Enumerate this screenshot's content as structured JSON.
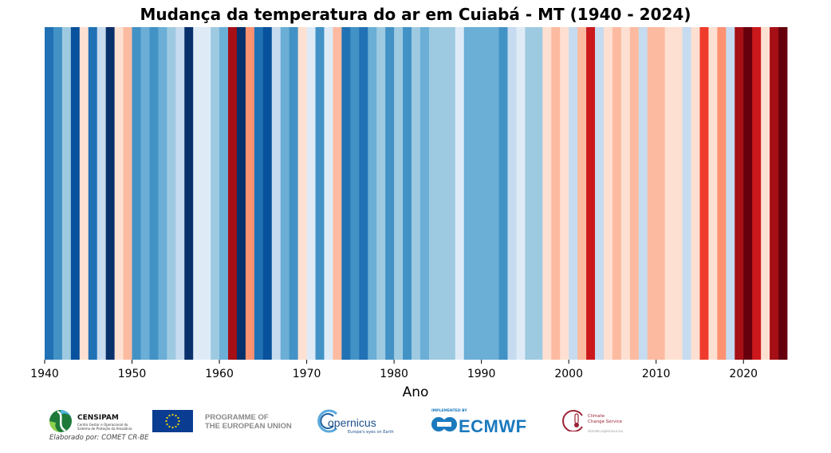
{
  "chart_data": {
    "type": "heatmap",
    "title": "Mudança da temperatura do ar em Cuiabá - MT (1940 - 2024)",
    "xlabel": "Ano",
    "ylabel": "",
    "xlim": [
      1940,
      2024
    ],
    "xticks": [
      1940,
      1950,
      1960,
      1970,
      1980,
      1990,
      2000,
      2010,
      2020
    ],
    "grid": false,
    "colormap": "RdBu_r",
    "years": [
      1940,
      1941,
      1942,
      1943,
      1944,
      1945,
      1946,
      1947,
      1948,
      1949,
      1950,
      1951,
      1952,
      1953,
      1954,
      1955,
      1956,
      1957,
      1958,
      1959,
      1960,
      1961,
      1962,
      1963,
      1964,
      1965,
      1966,
      1967,
      1968,
      1969,
      1970,
      1971,
      1972,
      1973,
      1974,
      1975,
      1976,
      1977,
      1978,
      1979,
      1980,
      1981,
      1982,
      1983,
      1984,
      1985,
      1986,
      1987,
      1988,
      1989,
      1990,
      1991,
      1992,
      1993,
      1994,
      1995,
      1996,
      1997,
      1998,
      1999,
      2000,
      2001,
      2002,
      2003,
      2004,
      2005,
      2006,
      2007,
      2008,
      2009,
      2010,
      2011,
      2012,
      2013,
      2014,
      2015,
      2016,
      2017,
      2018,
      2019,
      2020,
      2021,
      2022,
      2023,
      2024
    ],
    "colors": [
      "#2171b5",
      "#4292c6",
      "#9ecae1",
      "#08519c",
      "#fee0d2",
      "#2171b5",
      "#c6dbef",
      "#08306b",
      "#fee0d2",
      "#fcbba1",
      "#4292c6",
      "#6baed6",
      "#4292c6",
      "#6baed6",
      "#9ecae1",
      "#c6dbef",
      "#08306b",
      "#deebf7",
      "#deebf7",
      "#9ecae1",
      "#6baed6",
      "#a50f15",
      "#08306b",
      "#fc9272",
      "#2171b5",
      "#08519c",
      "#c6dbef",
      "#6baed6",
      "#4292c6",
      "#fee0d2",
      "#deebf7",
      "#4292c6",
      "#deebf7",
      "#fcbba1",
      "#2171b5",
      "#4292c6",
      "#2171b5",
      "#6baed6",
      "#9ecae1",
      "#4292c6",
      "#9ecae1",
      "#4292c6",
      "#9ecae1",
      "#6baed6",
      "#9ecae1",
      "#9ecae1",
      "#9ecae1",
      "#deebf7",
      "#6baed6",
      "#6baed6",
      "#6baed6",
      "#6baed6",
      "#4292c6",
      "#c6dbef",
      "#deebf7",
      "#9ecae1",
      "#9ecae1",
      "#fee0d2",
      "#fcbba1",
      "#fee0d2",
      "#c6dbef",
      "#fcbba1",
      "#cb181d",
      "#c6dbef",
      "#fee0d2",
      "#fcbba1",
      "#fee0d2",
      "#fcbba1",
      "#c6dbef",
      "#fcbba1",
      "#fcbba1",
      "#fee0d2",
      "#fee0d2",
      "#c6dbef",
      "#fee0d2",
      "#ef3b2c",
      "#fee0d2",
      "#fc9272",
      "#c6dbef",
      "#a50f15",
      "#67000d",
      "#cb181d",
      "#fee0d2",
      "#a50f15",
      "#67000d"
    ]
  },
  "footer": {
    "censipam": {
      "name": "CENSIPAM",
      "subtitle_1": "Centro Gestor e Operacional do",
      "subtitle_2": "Sistema de Proteção da Amazônia"
    },
    "eu": {
      "line1": "PROGRAMME OF",
      "line2": "THE EUROPEAN UNION"
    },
    "copernicus": {
      "name": "opernicus",
      "tagline": "Europe's eyes on Earth"
    },
    "ecmwf": {
      "implemented_by": "IMPLEMENTED BY",
      "name": "ECMWF"
    },
    "c3s": {
      "line1": "Climate",
      "line2": "Change Service",
      "url": "climate.copernicus.eu"
    },
    "credit": "Elaborado por: COMET CR-BE"
  },
  "colors": {
    "eu_blue": "#0a3d91",
    "eu_star": "#ffdd00",
    "ecmwf_blue": "#1a7abf",
    "c3s_red": "#9b2335",
    "censipam_green": "#1f7a3a"
  }
}
